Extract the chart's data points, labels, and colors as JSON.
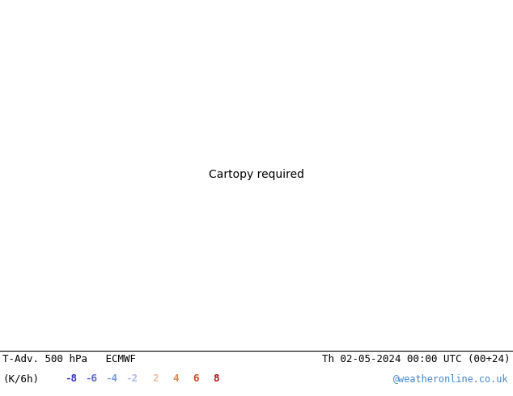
{
  "title_left": "T-Adv. 500 hPa   ECMWF",
  "title_right": "Th 02-05-2024 00:00 UTC (00+24)",
  "label_left": "(K/6h)",
  "colorbar_values": [
    -8,
    -6,
    -4,
    -2,
    2,
    4,
    6,
    8
  ],
  "neg_colors": [
    "#3333bb",
    "#5566cc",
    "#7799dd",
    "#aabbee"
  ],
  "pos_colors": [
    "#eebb99",
    "#dd8855",
    "#cc4422",
    "#aa1111"
  ],
  "website": "@weatheronline.co.uk",
  "website_color": "#4488cc",
  "background_color": "#ffffff",
  "land_color": "#c8e8a0",
  "sea_color": "#e0e8f0",
  "border_color": "#888888",
  "contour_color": "#000000",
  "figsize": [
    6.34,
    4.9
  ],
  "dpi": 100,
  "extent": [
    -45,
    45,
    30,
    75
  ],
  "contour_levels": [
    520,
    524,
    528,
    532,
    536,
    540,
    544,
    548,
    552,
    556,
    560,
    564,
    568,
    572,
    576,
    580,
    584,
    588
  ],
  "tadv_levels": [
    -9,
    -6,
    -4,
    -2,
    -0.5,
    0.5,
    2,
    4,
    6,
    9
  ],
  "tadv_colors": [
    "#2244cc",
    "#4466cc",
    "#7799dd",
    "#aaccee",
    "#e8f0f8",
    "#f8e8e0",
    "#eeaa88",
    "#dd6644",
    "#bb2211"
  ]
}
